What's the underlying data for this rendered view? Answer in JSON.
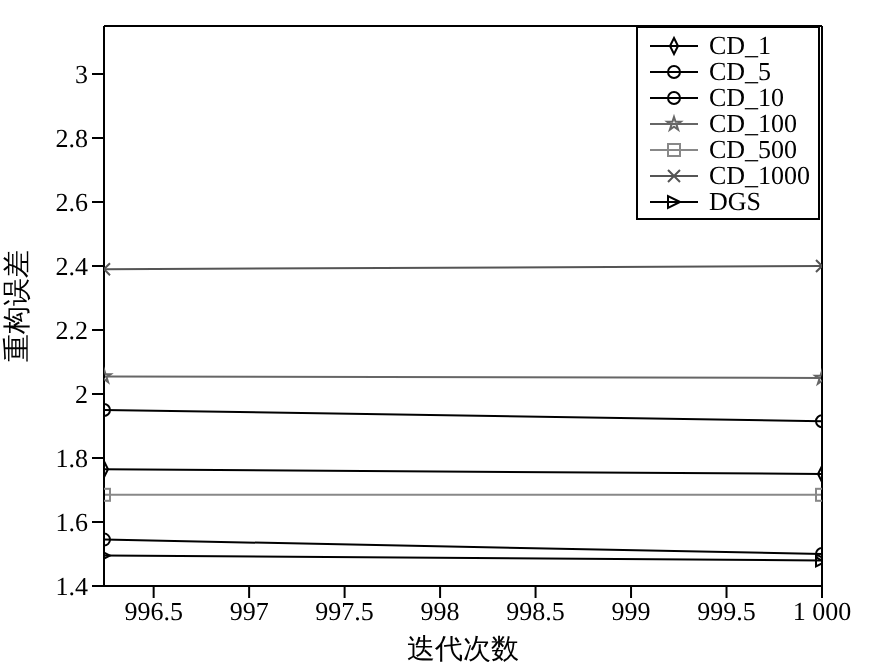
{
  "chart_data": {
    "type": "line",
    "xlabel": "迭代次数",
    "ylabel": "重构误差",
    "x": [
      996.24,
      1000
    ],
    "xlim": [
      996.24,
      1000
    ],
    "xticks": [
      996.5,
      997,
      997.5,
      998,
      998.5,
      999,
      999.5,
      {
        "value": 1000,
        "label": "1 000"
      }
    ],
    "ylim": [
      1.4,
      3.15
    ],
    "yticks": [
      1.4,
      1.6,
      1.8,
      2,
      2.2,
      2.4,
      2.6,
      2.8,
      3
    ],
    "grid": false,
    "legend": "top right",
    "line_style": "solid",
    "series": [
      {
        "name": "CD_1",
        "color": "#000000",
        "marker": "diamond",
        "values": [
          1.765,
          1.75
        ]
      },
      {
        "name": "CD_5",
        "color": "#000000",
        "marker": "circle",
        "values": [
          1.545,
          1.5
        ]
      },
      {
        "name": "CD_10",
        "color": "#000000",
        "marker": "circle",
        "values": [
          1.95,
          1.915
        ]
      },
      {
        "name": "CD_100",
        "color": "#666666",
        "marker": "star",
        "values": [
          2.055,
          2.05
        ]
      },
      {
        "name": "CD_500",
        "color": "#888888",
        "marker": "square",
        "values": [
          1.685,
          1.685
        ]
      },
      {
        "name": "CD_1000",
        "color": "#555555",
        "marker": "cross",
        "values": [
          2.39,
          2.4
        ]
      },
      {
        "name": "DGS",
        "color": "#000000",
        "marker": "triangle",
        "values": [
          1.495,
          1.48
        ]
      }
    ]
  }
}
